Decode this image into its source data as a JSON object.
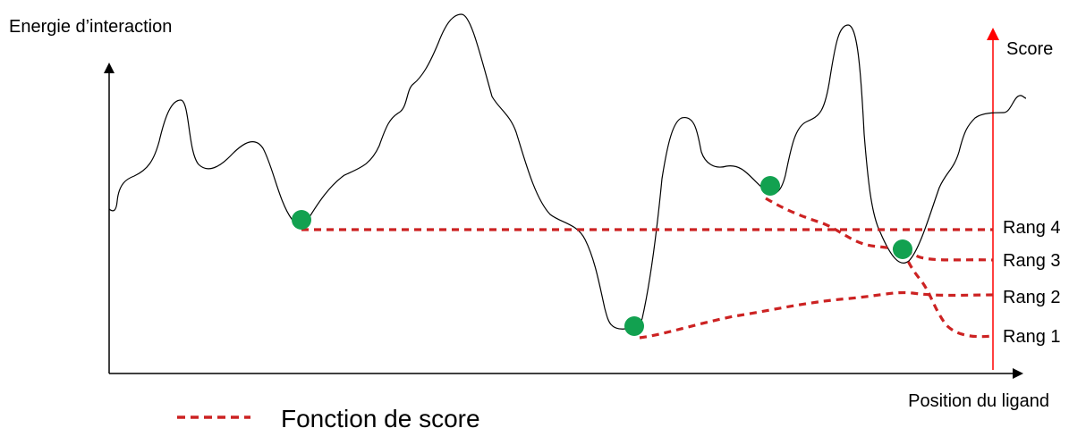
{
  "diagram": {
    "y_axis_label": "Energie d’interaction",
    "x_axis_label": "Position du ligand",
    "score_axis_label": "Score",
    "ranks": [
      "Rang 4",
      "Rang 3",
      "Rang 2",
      "Rang 1"
    ],
    "legend_label": "Fonction de score",
    "colors": {
      "curve": "#000000",
      "score_axis": "#ff0000",
      "score_line": "#cc2222",
      "minimum_marker": "#12a150"
    }
  }
}
